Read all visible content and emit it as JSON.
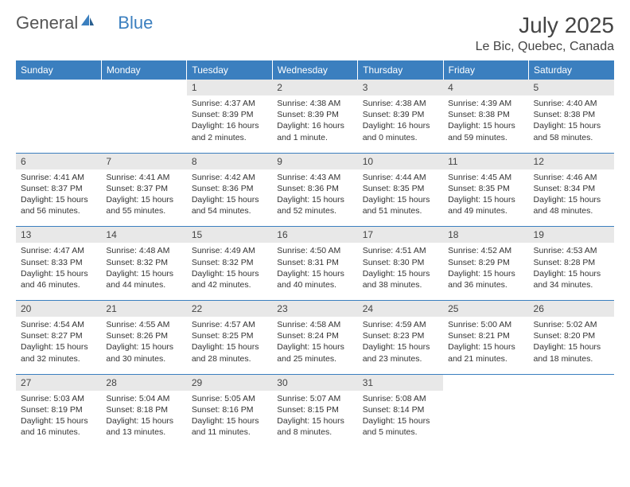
{
  "logo": {
    "text1": "General",
    "text2": "Blue"
  },
  "header": {
    "month_title": "July 2025",
    "location": "Le Bic, Quebec, Canada"
  },
  "weekdays": [
    "Sunday",
    "Monday",
    "Tuesday",
    "Wednesday",
    "Thursday",
    "Friday",
    "Saturday"
  ],
  "colors": {
    "accent": "#3b7fbf",
    "header_bg": "#e8e8e8",
    "text": "#333333"
  },
  "weeks": [
    [
      null,
      null,
      {
        "day": "1",
        "sunrise": "Sunrise: 4:37 AM",
        "sunset": "Sunset: 8:39 PM",
        "daylight": "Daylight: 16 hours and 2 minutes."
      },
      {
        "day": "2",
        "sunrise": "Sunrise: 4:38 AM",
        "sunset": "Sunset: 8:39 PM",
        "daylight": "Daylight: 16 hours and 1 minute."
      },
      {
        "day": "3",
        "sunrise": "Sunrise: 4:38 AM",
        "sunset": "Sunset: 8:39 PM",
        "daylight": "Daylight: 16 hours and 0 minutes."
      },
      {
        "day": "4",
        "sunrise": "Sunrise: 4:39 AM",
        "sunset": "Sunset: 8:38 PM",
        "daylight": "Daylight: 15 hours and 59 minutes."
      },
      {
        "day": "5",
        "sunrise": "Sunrise: 4:40 AM",
        "sunset": "Sunset: 8:38 PM",
        "daylight": "Daylight: 15 hours and 58 minutes."
      }
    ],
    [
      {
        "day": "6",
        "sunrise": "Sunrise: 4:41 AM",
        "sunset": "Sunset: 8:37 PM",
        "daylight": "Daylight: 15 hours and 56 minutes."
      },
      {
        "day": "7",
        "sunrise": "Sunrise: 4:41 AM",
        "sunset": "Sunset: 8:37 PM",
        "daylight": "Daylight: 15 hours and 55 minutes."
      },
      {
        "day": "8",
        "sunrise": "Sunrise: 4:42 AM",
        "sunset": "Sunset: 8:36 PM",
        "daylight": "Daylight: 15 hours and 54 minutes."
      },
      {
        "day": "9",
        "sunrise": "Sunrise: 4:43 AM",
        "sunset": "Sunset: 8:36 PM",
        "daylight": "Daylight: 15 hours and 52 minutes."
      },
      {
        "day": "10",
        "sunrise": "Sunrise: 4:44 AM",
        "sunset": "Sunset: 8:35 PM",
        "daylight": "Daylight: 15 hours and 51 minutes."
      },
      {
        "day": "11",
        "sunrise": "Sunrise: 4:45 AM",
        "sunset": "Sunset: 8:35 PM",
        "daylight": "Daylight: 15 hours and 49 minutes."
      },
      {
        "day": "12",
        "sunrise": "Sunrise: 4:46 AM",
        "sunset": "Sunset: 8:34 PM",
        "daylight": "Daylight: 15 hours and 48 minutes."
      }
    ],
    [
      {
        "day": "13",
        "sunrise": "Sunrise: 4:47 AM",
        "sunset": "Sunset: 8:33 PM",
        "daylight": "Daylight: 15 hours and 46 minutes."
      },
      {
        "day": "14",
        "sunrise": "Sunrise: 4:48 AM",
        "sunset": "Sunset: 8:32 PM",
        "daylight": "Daylight: 15 hours and 44 minutes."
      },
      {
        "day": "15",
        "sunrise": "Sunrise: 4:49 AM",
        "sunset": "Sunset: 8:32 PM",
        "daylight": "Daylight: 15 hours and 42 minutes."
      },
      {
        "day": "16",
        "sunrise": "Sunrise: 4:50 AM",
        "sunset": "Sunset: 8:31 PM",
        "daylight": "Daylight: 15 hours and 40 minutes."
      },
      {
        "day": "17",
        "sunrise": "Sunrise: 4:51 AM",
        "sunset": "Sunset: 8:30 PM",
        "daylight": "Daylight: 15 hours and 38 minutes."
      },
      {
        "day": "18",
        "sunrise": "Sunrise: 4:52 AM",
        "sunset": "Sunset: 8:29 PM",
        "daylight": "Daylight: 15 hours and 36 minutes."
      },
      {
        "day": "19",
        "sunrise": "Sunrise: 4:53 AM",
        "sunset": "Sunset: 8:28 PM",
        "daylight": "Daylight: 15 hours and 34 minutes."
      }
    ],
    [
      {
        "day": "20",
        "sunrise": "Sunrise: 4:54 AM",
        "sunset": "Sunset: 8:27 PM",
        "daylight": "Daylight: 15 hours and 32 minutes."
      },
      {
        "day": "21",
        "sunrise": "Sunrise: 4:55 AM",
        "sunset": "Sunset: 8:26 PM",
        "daylight": "Daylight: 15 hours and 30 minutes."
      },
      {
        "day": "22",
        "sunrise": "Sunrise: 4:57 AM",
        "sunset": "Sunset: 8:25 PM",
        "daylight": "Daylight: 15 hours and 28 minutes."
      },
      {
        "day": "23",
        "sunrise": "Sunrise: 4:58 AM",
        "sunset": "Sunset: 8:24 PM",
        "daylight": "Daylight: 15 hours and 25 minutes."
      },
      {
        "day": "24",
        "sunrise": "Sunrise: 4:59 AM",
        "sunset": "Sunset: 8:23 PM",
        "daylight": "Daylight: 15 hours and 23 minutes."
      },
      {
        "day": "25",
        "sunrise": "Sunrise: 5:00 AM",
        "sunset": "Sunset: 8:21 PM",
        "daylight": "Daylight: 15 hours and 21 minutes."
      },
      {
        "day": "26",
        "sunrise": "Sunrise: 5:02 AM",
        "sunset": "Sunset: 8:20 PM",
        "daylight": "Daylight: 15 hours and 18 minutes."
      }
    ],
    [
      {
        "day": "27",
        "sunrise": "Sunrise: 5:03 AM",
        "sunset": "Sunset: 8:19 PM",
        "daylight": "Daylight: 15 hours and 16 minutes."
      },
      {
        "day": "28",
        "sunrise": "Sunrise: 5:04 AM",
        "sunset": "Sunset: 8:18 PM",
        "daylight": "Daylight: 15 hours and 13 minutes."
      },
      {
        "day": "29",
        "sunrise": "Sunrise: 5:05 AM",
        "sunset": "Sunset: 8:16 PM",
        "daylight": "Daylight: 15 hours and 11 minutes."
      },
      {
        "day": "30",
        "sunrise": "Sunrise: 5:07 AM",
        "sunset": "Sunset: 8:15 PM",
        "daylight": "Daylight: 15 hours and 8 minutes."
      },
      {
        "day": "31",
        "sunrise": "Sunrise: 5:08 AM",
        "sunset": "Sunset: 8:14 PM",
        "daylight": "Daylight: 15 hours and 5 minutes."
      },
      null,
      null
    ]
  ]
}
